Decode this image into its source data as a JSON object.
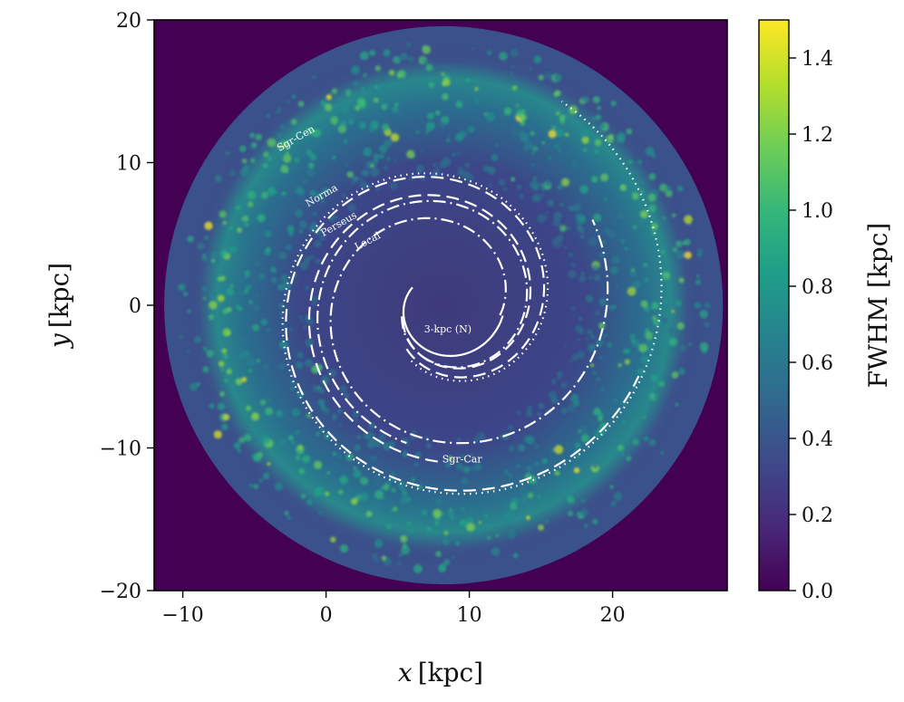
{
  "chart_data": {
    "type": "heatmap",
    "xlabel_var": "x",
    "xlabel_unit": "[kpc]",
    "ylabel_var": "y",
    "ylabel_unit": "[kpc]",
    "xlim": [
      -12,
      28
    ],
    "ylim": [
      -20,
      20
    ],
    "x_ticks": [
      -10,
      0,
      10,
      20
    ],
    "x_tick_labels": [
      "−10",
      "0",
      "10",
      "20"
    ],
    "y_ticks": [
      -20,
      -10,
      0,
      10,
      20
    ],
    "y_tick_labels": [
      "−20",
      "−10",
      "0",
      "10",
      "20"
    ],
    "colorbar": {
      "label": "FWHM [kpc]",
      "range": [
        0.0,
        1.5
      ],
      "ticks": [
        0.0,
        0.2,
        0.4,
        0.6,
        0.8,
        1.0,
        1.2,
        1.4
      ],
      "tick_labels": [
        "0.0",
        "0.2",
        "0.4",
        "0.6",
        "0.8",
        "1.0",
        "1.2",
        "1.4"
      ],
      "colormap": [
        "#440154",
        "#482878",
        "#3e4989",
        "#31688e",
        "#26828e",
        "#1f9e89",
        "#35b779",
        "#6ece58",
        "#b5de2b",
        "#fde725"
      ]
    },
    "galactic_center": [
      8.2,
      0
    ],
    "disk_edge_radius_kpc": 19.5,
    "arms": [
      {
        "name": "Sgr-Cen",
        "label": "Sgr-Cen",
        "style": "dotted",
        "r_start": 4.5,
        "r_end": 16.5,
        "theta_start_deg": -120,
        "turns_deg": 540
      },
      {
        "name": "Norma",
        "label": "Norma",
        "style": "dashed",
        "r_start": 4.0,
        "r_end": 14.5,
        "theta_start_deg": -130,
        "turns_deg": 470
      },
      {
        "name": "Perseus",
        "label": "Perseus",
        "style": "dashed",
        "r_start": 3.0,
        "r_end": 11.0,
        "theta_start_deg": -160,
        "turns_deg": 430
      },
      {
        "name": "Local",
        "label": "Local",
        "style": "dashdot",
        "r_start": 3.0,
        "r_end": 10.0,
        "theta_start_deg": -165,
        "turns_deg": 420
      },
      {
        "name": "Sgr-Car",
        "label": "Sgr-Car",
        "style": "dashdot",
        "r_start": 4.0,
        "r_end": 12.0,
        "theta_start_deg": -10,
        "turns_deg": 400
      },
      {
        "name": "3-kpc (N)",
        "label": "3-kpc (N)",
        "style": "solid",
        "r_start": 2.5,
        "r_end": 4.2,
        "theta_start_deg": 150,
        "turns_deg": 200
      }
    ],
    "arm_labels": [
      {
        "text": "Sgr-Cen",
        "x": -2.0,
        "y": 11.5,
        "rotate": -30
      },
      {
        "text": "Norma",
        "x": -0.2,
        "y": 7.5,
        "rotate": -30
      },
      {
        "text": "Perseus",
        "x": 1.0,
        "y": 5.5,
        "rotate": -30
      },
      {
        "text": "Local",
        "x": 3.0,
        "y": 4.3,
        "rotate": -28
      },
      {
        "text": "3-kpc (N)",
        "x": 8.5,
        "y": -1.9,
        "rotate": 0
      },
      {
        "text": "Sgr-Car",
        "x": 9.5,
        "y": -11.0,
        "rotate": 0
      }
    ]
  }
}
